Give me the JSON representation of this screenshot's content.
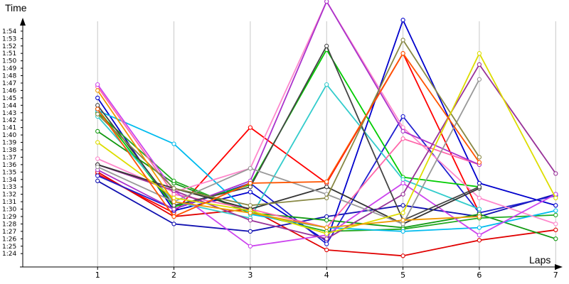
{
  "chart_data": {
    "type": "line",
    "ylabel": "Time",
    "xlabel": "Laps",
    "x": [
      1,
      2,
      3,
      4,
      5,
      6,
      7
    ],
    "xlim": [
      0.02,
      7.1
    ],
    "ylim_seconds": [
      82.2,
      118.2
    ],
    "y_ticks": [
      "1:24",
      "1:25",
      "1:26",
      "1:27",
      "1:28",
      "1:29",
      "1:30",
      "1:31",
      "1:32",
      "1:33",
      "1:34",
      "1:35",
      "1:36",
      "1:37",
      "1:38",
      "1:39",
      "1:40",
      "1:41",
      "1:42",
      "1:43",
      "1:44",
      "1:45",
      "1:46",
      "1:47",
      "1:48",
      "1:49",
      "1:50",
      "1:51",
      "1:52",
      "1:53",
      "1:54"
    ],
    "grid_vertical": true,
    "grid_horizontal": false,
    "series": [
      {
        "color": "#ff0000",
        "values": [
          "1:34.7",
          "1:29.5",
          "1:41.0",
          "1:33.5",
          "1:51.0",
          "1:29.5",
          null
        ]
      },
      {
        "color": "#e00000",
        "values": [
          "1:35.0",
          "1:29.0",
          "1:30.0",
          "1:24.5",
          "1:23.7",
          "1:25.8",
          "1:27.2"
        ]
      },
      {
        "color": "#0000cc",
        "values": [
          "1:45.0",
          "1:29.8",
          "1:32.3",
          "1:25.7",
          "1:55.5",
          "1:33.5",
          "1:30.5"
        ]
      },
      {
        "color": "#1010b0",
        "values": [
          "1:33.8",
          "1:28.0",
          "1:27.0",
          "1:29.0",
          "1:30.5",
          "1:29.0",
          "1:32.0"
        ]
      },
      {
        "color": "#2020d0",
        "values": [
          "1:34.5",
          "1:30.0",
          "1:33.5",
          "1:25.3",
          "1:42.5",
          "1:29.5",
          "1:31.8"
        ]
      },
      {
        "color": "#00cc00",
        "values": [
          "1:43.5",
          "1:30.3",
          "1:33.3",
          "1:51.5",
          "1:34.3",
          "1:33.0",
          null
        ]
      },
      {
        "color": "#119911",
        "values": [
          "1:40.5",
          "1:33.5",
          "1:29.5",
          "1:28.5",
          "1:27.5",
          "1:29.3",
          "1:26.0"
        ]
      },
      {
        "color": "#22aa22",
        "values": [
          "1:43.0",
          "1:33.8",
          "1:29.5",
          "1:27.0",
          "1:27.3",
          "1:28.8",
          "1:29.2"
        ]
      },
      {
        "color": "#00bbee",
        "values": [
          "1:43.3",
          "1:38.8",
          "1:29.3",
          "1:27.5",
          "1:27.0",
          "1:27.5",
          "1:29.8"
        ]
      },
      {
        "color": "#33cccc",
        "values": [
          "1:42.5",
          "1:31.0",
          "1:28.8",
          "1:46.8",
          "1:34.0",
          "1:30.0",
          null
        ]
      },
      {
        "color": "#ff88cc",
        "values": [
          "1:36.8",
          "1:32.3",
          "1:35.5",
          "1:58.0",
          "1:41.0",
          "1:31.5",
          "1:28.0"
        ]
      },
      {
        "color": "#ff66aa",
        "values": [
          "1:46.5",
          "1:32.0",
          "1:30.0",
          "1:27.5",
          "1:39.5",
          "1:36.0",
          null
        ]
      },
      {
        "color": "#cc44ee",
        "values": [
          "1:46.8",
          "1:32.5",
          "1:25.0",
          "1:26.5",
          "1:33.5",
          "1:26.5",
          "1:32.0"
        ]
      },
      {
        "color": "#aa33cc",
        "values": [
          "1:35.3",
          "1:30.0",
          "1:33.8",
          "1:58.0",
          "1:40.5",
          "1:36.0",
          null
        ]
      },
      {
        "color": "#993399",
        "values": [
          "1:36.0",
          "1:32.5",
          "1:28.5",
          "1:26.0",
          "1:32.0",
          "1:49.5",
          "1:34.8"
        ]
      },
      {
        "color": "#333333",
        "values": [
          "1:36.0",
          "1:32.8",
          "1:30.0",
          "1:33.0",
          "1:28.0",
          "1:32.8",
          null
        ]
      },
      {
        "color": "#444444",
        "values": [
          "1:44.0",
          "1:30.5",
          "1:33.0",
          "1:52.0",
          "1:28.5",
          "1:33.0",
          null
        ]
      },
      {
        "color": "#999999",
        "values": [
          "1:35.7",
          "1:31.0",
          "1:35.5",
          "1:32.0",
          "1:28.0",
          "1:47.5",
          null
        ]
      },
      {
        "color": "#888844",
        "values": [
          "1:42.8",
          "1:32.8",
          "1:30.5",
          "1:31.5",
          "1:52.8",
          "1:37.0",
          null
        ]
      },
      {
        "color": "#dddd00",
        "values": [
          "1:39.0",
          "1:31.5",
          "1:29.8",
          "1:26.7",
          "1:29.5",
          "1:51.0",
          "1:31.5"
        ]
      },
      {
        "color": "#ee9900",
        "values": [
          "1:46.0",
          "1:31.0",
          "1:29.5",
          "1:27.5",
          "1:28.5",
          "1:29.0",
          null
        ]
      },
      {
        "color": "#ff5500",
        "values": [
          "1:43.5",
          "1:29.0",
          "1:33.5",
          "1:33.7",
          "1:51.0",
          "1:36.3",
          null
        ]
      }
    ]
  }
}
